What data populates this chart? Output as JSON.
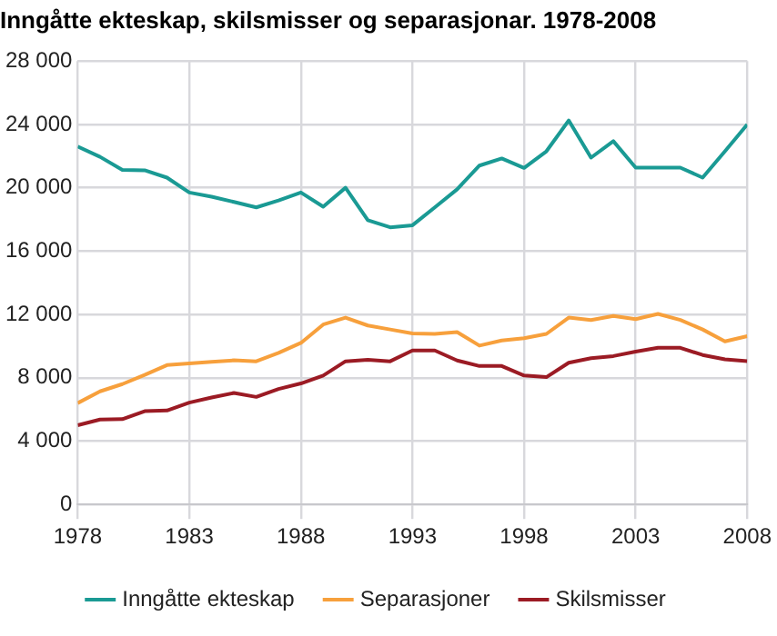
{
  "chart_data": {
    "type": "line",
    "title": "Inngåtte ekteskap, skilsmisser og separasjonar. 1978-2008",
    "x": [
      1978,
      1979,
      1980,
      1981,
      1982,
      1983,
      1984,
      1985,
      1986,
      1987,
      1988,
      1989,
      1990,
      1991,
      1992,
      1993,
      1994,
      1995,
      1996,
      1997,
      1998,
      1999,
      2000,
      2001,
      2002,
      2003,
      2004,
      2005,
      2006,
      2007,
      2008
    ],
    "series": [
      {
        "name": "Inngåtte ekteskap",
        "color": "#1a9a94",
        "values": [
          22600,
          21950,
          21130,
          21100,
          20640,
          19700,
          19430,
          19100,
          18760,
          19200,
          19700,
          18800,
          20000,
          17950,
          17500,
          17630,
          18760,
          19900,
          21400,
          21850,
          21250,
          22300,
          24250,
          21900,
          22940,
          21270,
          21270,
          21270,
          20640,
          22300,
          24000
        ]
      },
      {
        "name": "Separasjoner",
        "color": "#f7a03c",
        "values": [
          6400,
          7140,
          7600,
          8180,
          8800,
          8900,
          9000,
          9100,
          9040,
          9570,
          10200,
          11360,
          11800,
          11300,
          11050,
          10800,
          10770,
          10880,
          10030,
          10350,
          10500,
          10770,
          11800,
          11650,
          11900,
          11700,
          12030,
          11650,
          11050,
          10300,
          10630
        ]
      },
      {
        "name": "Skilsmisser",
        "color": "#9b1b24",
        "values": [
          5000,
          5360,
          5390,
          5890,
          5930,
          6430,
          6750,
          7040,
          6790,
          7290,
          7640,
          8140,
          9040,
          9140,
          9040,
          9720,
          9720,
          9090,
          8740,
          8740,
          8140,
          8040,
          8950,
          9230,
          9370,
          9650,
          9890,
          9890,
          9440,
          9160,
          9050
        ]
      }
    ],
    "xlim": [
      1978,
      2008
    ],
    "xticks": [
      1978,
      1983,
      1988,
      1993,
      1998,
      2003,
      2008
    ],
    "ylim": [
      0,
      28000
    ],
    "yticks": [
      0,
      {
        "value": 4000,
        "label": "4 000"
      },
      {
        "value": 8000,
        "label": "8 000"
      },
      {
        "value": 12000,
        "label": "12 000"
      },
      {
        "value": 16000,
        "label": "16 000"
      },
      {
        "value": 20000,
        "label": "20 000"
      },
      {
        "value": 24000,
        "label": "24 000"
      },
      {
        "value": 28000,
        "label": "28 000"
      }
    ],
    "grid": true,
    "legend": "bottom",
    "marker": "none",
    "line_style": "solid"
  }
}
